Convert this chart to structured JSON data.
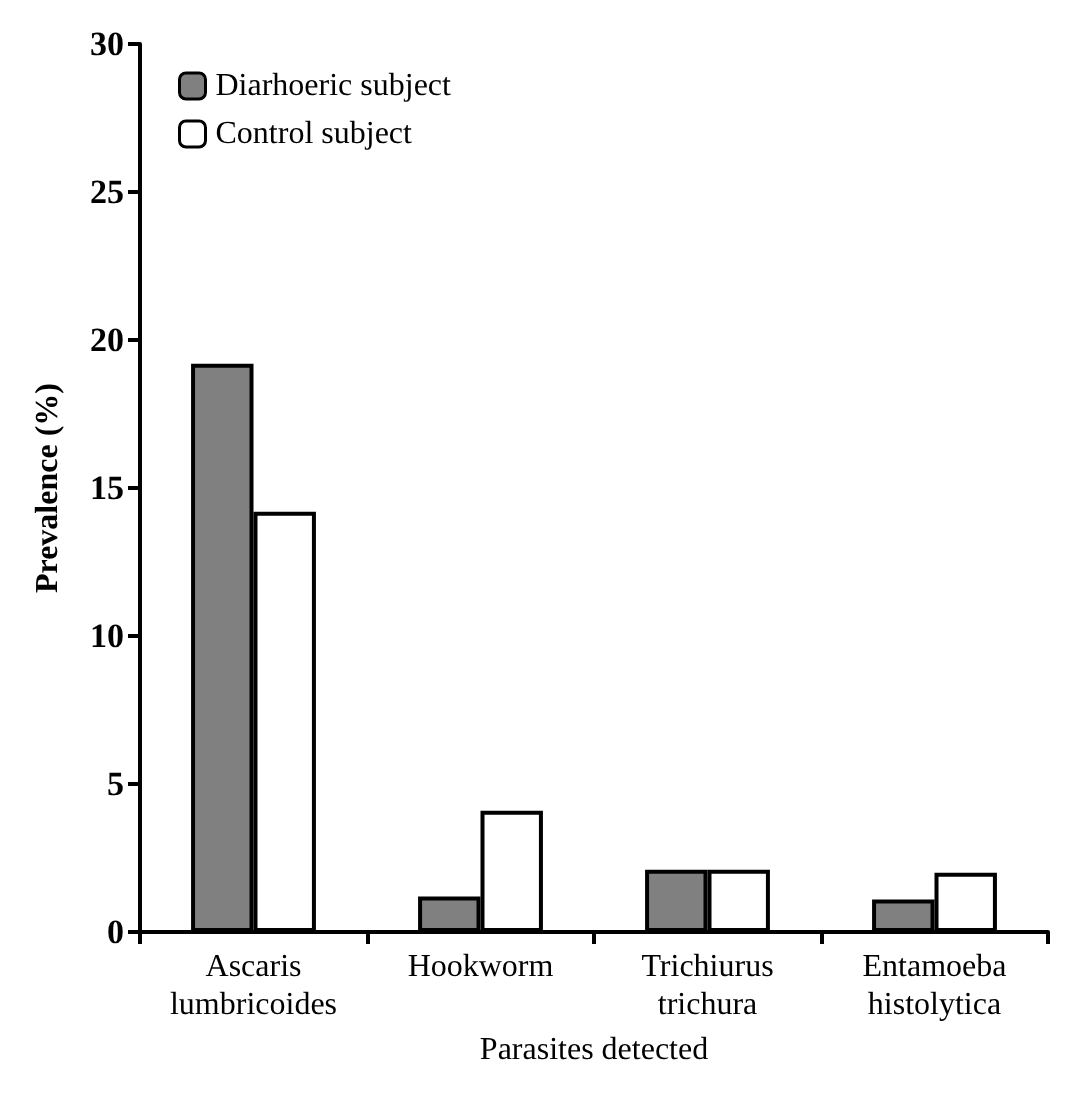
{
  "chart_data": {
    "type": "bar",
    "xlabel": "Parasites detected",
    "ylabel": "Prevalence (%)",
    "categories": [
      "Ascaris\nlumbricoides",
      "Hookworm",
      "Trichiurus\ntrichura",
      "Entamoeba\nhistolytica"
    ],
    "series": [
      {
        "name": "Diarhoeric subject",
        "color": "#808080",
        "values": [
          19.2,
          1.2,
          2.1,
          1.1
        ]
      },
      {
        "name": "Control subject",
        "color": "#ffffff",
        "values": [
          14.2,
          4.1,
          2.1,
          2.0
        ]
      }
    ],
    "ylim": [
      0,
      30
    ],
    "yticks": [
      0,
      5,
      10,
      15,
      20,
      25,
      30
    ],
    "grid": false,
    "legend": "top left"
  }
}
